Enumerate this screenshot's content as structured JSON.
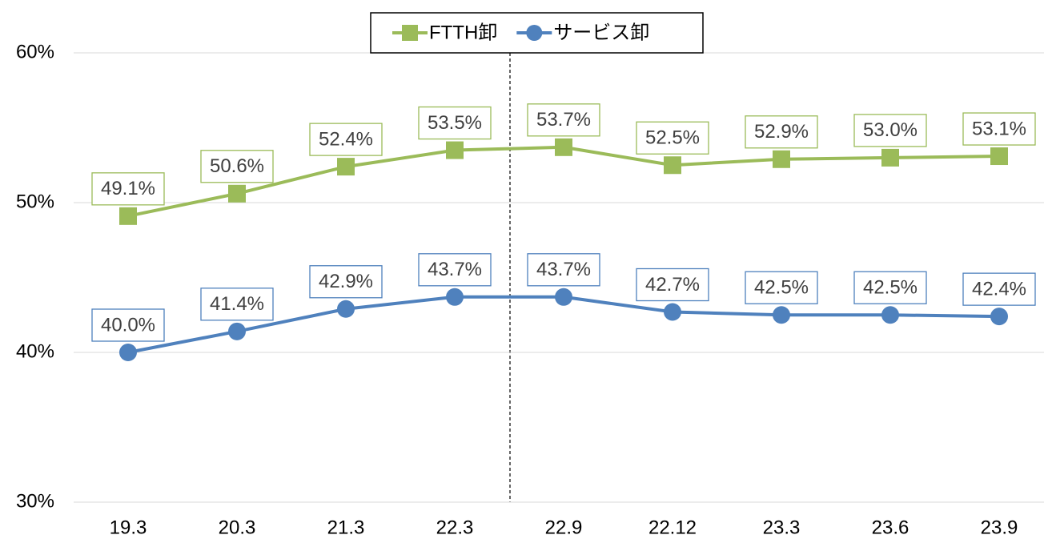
{
  "chart_data": {
    "type": "line",
    "categories": [
      "19.3",
      "20.3",
      "21.3",
      "22.3",
      "22.9",
      "22.12",
      "23.3",
      "23.6",
      "23.9"
    ],
    "series": [
      {
        "name": "FTTH卸",
        "color": "#9bbb59",
        "marker": "square",
        "values": [
          49.1,
          50.6,
          52.4,
          53.5,
          53.7,
          52.5,
          52.9,
          53.0,
          53.1
        ],
        "value_labels": [
          "49.1%",
          "50.6%",
          "52.4%",
          "53.5%",
          "53.7%",
          "52.5%",
          "52.9%",
          "53.0%",
          "53.1%"
        ]
      },
      {
        "name": "サービス卸",
        "color": "#4f81bd",
        "marker": "circle",
        "values": [
          40.0,
          41.4,
          42.9,
          43.7,
          43.7,
          42.7,
          42.5,
          42.5,
          42.4
        ],
        "value_labels": [
          "40.0%",
          "41.4%",
          "42.9%",
          "43.7%",
          "43.7%",
          "42.7%",
          "42.5%",
          "42.5%",
          "42.4%"
        ]
      }
    ],
    "ylim": [
      30,
      60
    ],
    "yticks": [
      {
        "value": 30,
        "label": "30%"
      },
      {
        "value": 40,
        "label": "40%"
      },
      {
        "value": 50,
        "label": "50%"
      },
      {
        "value": 60,
        "label": "60%"
      }
    ],
    "grid": true,
    "legend": "top"
  }
}
